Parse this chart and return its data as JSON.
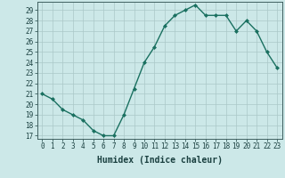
{
  "x": [
    0,
    1,
    2,
    3,
    4,
    5,
    6,
    7,
    8,
    9,
    10,
    11,
    12,
    13,
    14,
    15,
    16,
    17,
    18,
    19,
    20,
    21,
    22,
    23
  ],
  "y": [
    21,
    20.5,
    19.5,
    19,
    18.5,
    17.5,
    17,
    17,
    19,
    21.5,
    24,
    25.5,
    27.5,
    28.5,
    29,
    29.5,
    28.5,
    28.5,
    28.5,
    27,
    28,
    27,
    25,
    23.5
  ],
  "xlabel": "Humidex (Indice chaleur)",
  "xlim": [
    -0.5,
    23.5
  ],
  "ylim": [
    16.7,
    29.8
  ],
  "yticks": [
    17,
    18,
    19,
    20,
    21,
    22,
    23,
    24,
    25,
    26,
    27,
    28,
    29
  ],
  "xticks": [
    0,
    1,
    2,
    3,
    4,
    5,
    6,
    7,
    8,
    9,
    10,
    11,
    12,
    13,
    14,
    15,
    16,
    17,
    18,
    19,
    20,
    21,
    22,
    23
  ],
  "line_color": "#1a7060",
  "marker_color": "#1a7060",
  "bg_color": "#cce8e8",
  "grid_color": "#aac8c8",
  "tick_label_fontsize": 5.5,
  "xlabel_fontsize": 7,
  "marker_size": 2.0,
  "line_width": 1.0
}
